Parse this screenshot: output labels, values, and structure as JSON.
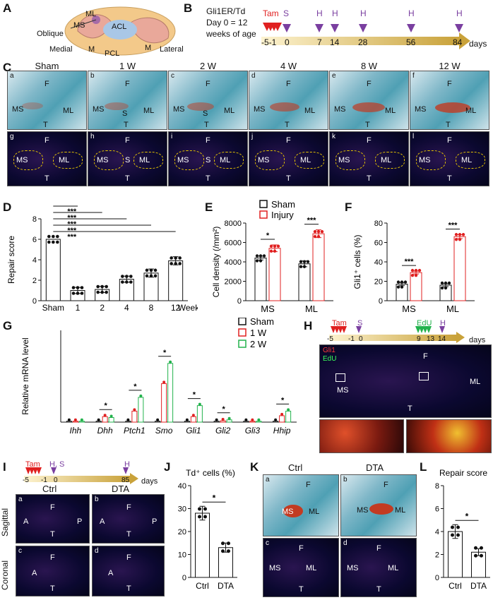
{
  "panels": {
    "A": {
      "letter": "A",
      "labels": [
        "ML",
        "MS",
        "ACL",
        "Oblique",
        "Medial",
        "M",
        "PCL",
        "M",
        "Lateral"
      ]
    },
    "B": {
      "letter": "B",
      "line1": "Gli1ER/Td",
      "line2": "Day 0 = 12",
      "line3": "weeks of age",
      "tam": "Tam",
      "s": "S",
      "h": "H",
      "days_label": "days",
      "ticks": [
        "-5-1",
        "0",
        "7",
        "14",
        "28",
        "56",
        "84"
      ]
    },
    "C": {
      "letter": "C",
      "columns": [
        "Sham",
        "1 W",
        "2 W",
        "4 W",
        "8 W",
        "12 W"
      ],
      "top_corners": [
        "a",
        "b",
        "c",
        "d",
        "e",
        "f"
      ],
      "bottom_corners": [
        "g",
        "h",
        "i",
        "j",
        "k",
        "l"
      ],
      "F": "F",
      "T": "T",
      "MS": "MS",
      "ML": "ML",
      "S": "S"
    },
    "D": {
      "letter": "D"
    },
    "E": {
      "letter": "E"
    },
    "F": {
      "letter": "F"
    },
    "G": {
      "letter": "G"
    },
    "H": {
      "letter": "H",
      "tam": "Tam",
      "s": "S",
      "edu": "EdU",
      "h": "H",
      "days": "days",
      "ticks": [
        "-5",
        "-1",
        "0",
        "9",
        "13",
        "14"
      ],
      "gli1": "Gli1",
      "edu_legend": "EdU",
      "F": "F",
      "MS": "MS",
      "ML": "ML",
      "T": "T"
    },
    "I": {
      "letter": "I",
      "tam": "Tam",
      "hs": "H, S",
      "h": "H",
      "days": "days",
      "ticks": [
        "-5",
        "-1",
        "0",
        "85"
      ],
      "ctrl": "Ctrl",
      "dta": "DTA",
      "sagittal": "Sagittal",
      "coronal": "Coronal",
      "corners": [
        "a",
        "b",
        "c",
        "d"
      ],
      "F": "F",
      "A": "A",
      "P": "P",
      "T": "T"
    },
    "J": {
      "letter": "J"
    },
    "K": {
      "letter": "K",
      "ctrl": "Ctrl",
      "dta": "DTA",
      "corners": [
        "a",
        "b",
        "c",
        "d"
      ],
      "F": "F",
      "MS": "MS",
      "ML": "ML",
      "T": "T"
    },
    "L": {
      "letter": "L"
    }
  },
  "chart_data": [
    {
      "id": "D",
      "type": "bar",
      "categories": [
        "Sham",
        "1",
        "2",
        "4",
        "8",
        "12"
      ],
      "values": [
        6.0,
        1.0,
        1.1,
        2.1,
        2.7,
        3.9
      ],
      "errors": [
        0.0,
        0.3,
        0.3,
        0.3,
        0.4,
        0.4
      ],
      "xlabel": "Weeks",
      "ylabel": "Repair score",
      "ylim": [
        0,
        8
      ],
      "yticks": [
        "0",
        "2",
        "4",
        "6",
        "8"
      ],
      "significance": [
        "***",
        "***",
        "***",
        "***",
        "***"
      ]
    },
    {
      "id": "E",
      "type": "bar",
      "categories": [
        "MS",
        "ML"
      ],
      "series": [
        {
          "name": "Sham",
          "values": [
            4400,
            3800
          ],
          "errors": [
            200,
            300
          ],
          "color": "#111111"
        },
        {
          "name": "Injury",
          "values": [
            5400,
            6900
          ],
          "errors": [
            350,
            400
          ],
          "color": "#e02020"
        }
      ],
      "ylabel": "Cell density (/mm²)",
      "ylim": [
        0,
        8000
      ],
      "yticks": [
        "0",
        "2000",
        "4000",
        "6000",
        "8000"
      ],
      "significance": [
        "*",
        "***"
      ]
    },
    {
      "id": "F",
      "type": "bar",
      "categories": [
        "MS",
        "ML"
      ],
      "series": [
        {
          "name": "Sham",
          "values": [
            17,
            16
          ],
          "errors": [
            1.5,
            1.5
          ],
          "color": "#111111"
        },
        {
          "name": "Injury",
          "values": [
            29,
            66
          ],
          "errors": [
            1.5,
            2
          ],
          "color": "#e02020"
        }
      ],
      "ylabel": "Gli1⁺ cells (%)",
      "ylim": [
        0,
        80
      ],
      "yticks": [
        "0",
        "20",
        "40",
        "60",
        "80"
      ],
      "significance": [
        "***",
        "***"
      ]
    },
    {
      "id": "G",
      "type": "bar",
      "categories": [
        "Ihh",
        "Dhh",
        "Ptch1",
        "Smo",
        "Gli1",
        "Gli2",
        "Gli3",
        "Hhip"
      ],
      "series": [
        {
          "name": "Sham",
          "values": [
            1,
            1,
            1,
            1,
            1,
            1,
            1,
            1
          ],
          "color": "#111111"
        },
        {
          "name": "1 W",
          "values": [
            1,
            6,
            12,
            42,
            6,
            1.5,
            1,
            7
          ],
          "color": "#e02020"
        },
        {
          "name": "2 W",
          "values": [
            1,
            5,
            27,
            64,
            18,
            2.5,
            1,
            12
          ],
          "color": "#22b24c"
        }
      ],
      "ylabel": "Relative mRNA level",
      "ylim": [
        0,
        100
      ],
      "significance": {
        "Dhh": "*",
        "Ptch1": "*",
        "Smo": "*",
        "Gli1": "*",
        "Gli2": "*",
        "Hhip": "*"
      }
    },
    {
      "id": "J",
      "type": "bar",
      "categories": [
        "Ctrl",
        "DTA"
      ],
      "values": [
        28,
        13
      ],
      "errors": [
        3,
        2
      ],
      "title": "Td⁺ cells (%)",
      "ylim": [
        0,
        40
      ],
      "yticks": [
        "0",
        "10",
        "20",
        "30",
        "40"
      ],
      "significance": "*"
    },
    {
      "id": "L",
      "type": "bar",
      "categories": [
        "Ctrl",
        "DTA"
      ],
      "values": [
        4.0,
        2.2
      ],
      "errors": [
        0.6,
        0.3
      ],
      "title": "Repair score",
      "ylim": [
        0,
        8
      ],
      "yticks": [
        "0",
        "2",
        "4",
        "6",
        "8"
      ],
      "significance": "*"
    }
  ]
}
